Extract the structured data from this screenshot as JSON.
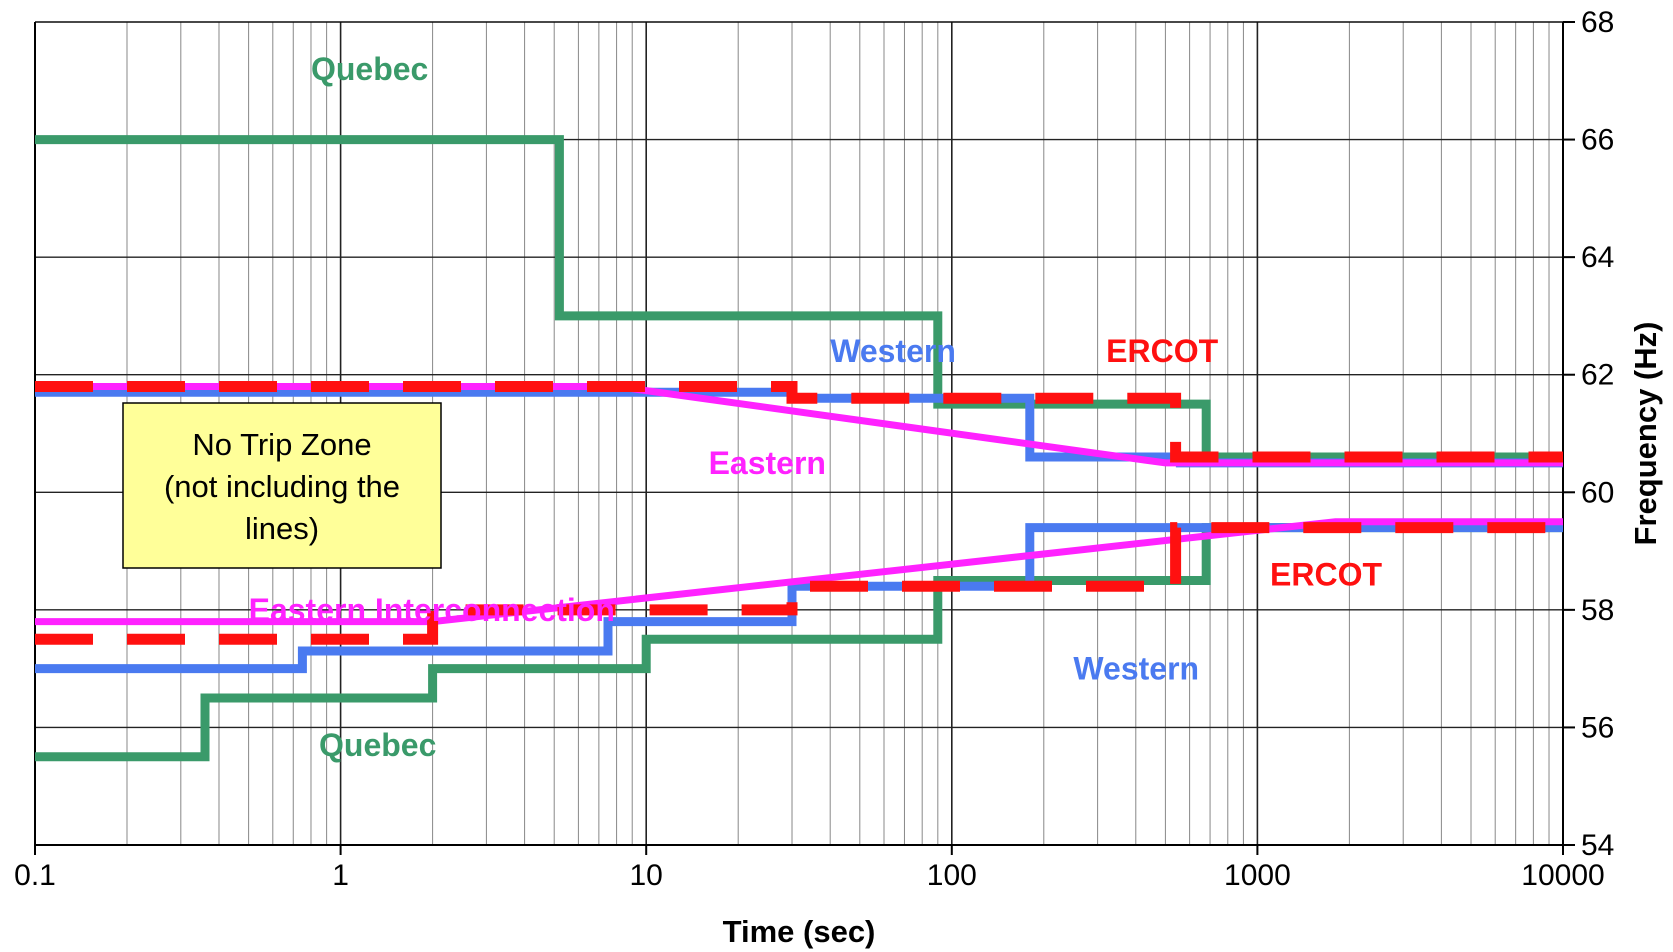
{
  "chart_data": {
    "type": "line",
    "title": "",
    "xlabel": "Time (sec)",
    "ylabel": "Frequency (Hz)",
    "xscale": "log",
    "xlim": [
      0.1,
      10000
    ],
    "ylim": [
      54,
      68
    ],
    "x_ticks": [
      "0.1",
      "1",
      "10",
      "100",
      "1000",
      "10000"
    ],
    "y_ticks": [
      "54",
      "56",
      "58",
      "60",
      "62",
      "64",
      "66",
      "68"
    ],
    "grid": true,
    "legend": "none",
    "colors": {
      "quebec": "#3a9a6a",
      "western": "#4a7af0",
      "eastern": "#ff22ff",
      "ercot": "#ff1010"
    },
    "series": [
      {
        "key": "quebec_high",
        "group": "quebec",
        "style": "solid",
        "points": [
          [
            0.1,
            66
          ],
          [
            5.2,
            66
          ],
          [
            5.2,
            63
          ],
          [
            90,
            63
          ],
          [
            90,
            61.5
          ],
          [
            680,
            61.5
          ],
          [
            680,
            60.6
          ],
          [
            10000,
            60.6
          ]
        ]
      },
      {
        "key": "western_high",
        "group": "western",
        "style": "solid",
        "points": [
          [
            0.1,
            61.7
          ],
          [
            30,
            61.7
          ],
          [
            30,
            61.6
          ],
          [
            180,
            61.6
          ],
          [
            180,
            60.6
          ],
          [
            560,
            60.6
          ],
          [
            560,
            60.5
          ],
          [
            10000,
            60.5
          ]
        ]
      },
      {
        "key": "eastern_high",
        "group": "eastern",
        "style": "solid",
        "points": [
          [
            0.1,
            61.8
          ],
          [
            8,
            61.8
          ],
          [
            500,
            60.5
          ],
          [
            10000,
            60.5
          ]
        ]
      },
      {
        "key": "ercot_high",
        "group": "ercot",
        "style": "dashed",
        "points": [
          [
            0.1,
            61.8
          ],
          [
            30,
            61.8
          ],
          [
            30,
            61.6
          ],
          [
            540,
            61.6
          ],
          [
            540,
            60.6
          ],
          [
            10000,
            60.6
          ]
        ]
      },
      {
        "key": "quebec_low",
        "group": "quebec",
        "style": "solid",
        "points": [
          [
            0.1,
            55.5
          ],
          [
            0.36,
            55.5
          ],
          [
            0.36,
            56.5
          ],
          [
            2,
            56.5
          ],
          [
            2,
            57
          ],
          [
            10,
            57
          ],
          [
            10,
            57.5
          ],
          [
            90,
            57.5
          ],
          [
            90,
            58.5
          ],
          [
            680,
            58.5
          ],
          [
            680,
            59.4
          ],
          [
            10000,
            59.4
          ]
        ]
      },
      {
        "key": "western_low",
        "group": "western",
        "style": "solid",
        "points": [
          [
            0.1,
            57
          ],
          [
            0.75,
            57
          ],
          [
            0.75,
            57.3
          ],
          [
            7.5,
            57.3
          ],
          [
            7.5,
            57.8
          ],
          [
            30,
            57.8
          ],
          [
            30,
            58.4
          ],
          [
            180,
            58.4
          ],
          [
            180,
            59.4
          ],
          [
            10000,
            59.4
          ]
        ]
      },
      {
        "key": "eastern_low",
        "group": "eastern",
        "style": "solid",
        "points": [
          [
            0.1,
            57.8
          ],
          [
            2,
            57.8
          ],
          [
            1800,
            59.5
          ],
          [
            10000,
            59.5
          ]
        ]
      },
      {
        "key": "ercot_low",
        "group": "ercot",
        "style": "dashed",
        "points": [
          [
            0.1,
            57.5
          ],
          [
            2,
            57.5
          ],
          [
            2,
            58
          ],
          [
            30,
            58
          ],
          [
            30,
            58.4
          ],
          [
            540,
            58.4
          ],
          [
            540,
            59.4
          ],
          [
            10000,
            59.4
          ]
        ]
      }
    ],
    "annotations": [
      {
        "key": "quebec_top",
        "text": "Quebec",
        "group": "quebec",
        "x": 0.8,
        "y": 67.2
      },
      {
        "key": "western_top",
        "text": "Western",
        "group": "western",
        "x": 40,
        "y": 62.4
      },
      {
        "key": "ercot_top",
        "text": "ERCOT",
        "group": "ercot",
        "x": 320,
        "y": 62.4
      },
      {
        "key": "eastern_mid",
        "text": "Eastern",
        "group": "eastern",
        "x": 16,
        "y": 60.5
      },
      {
        "key": "eastern_interconnection",
        "text": "Eastern Interconnection",
        "group": "eastern",
        "x": 0.5,
        "y": 58.0
      },
      {
        "key": "ercot_bottom",
        "text": "ERCOT",
        "group": "ercot",
        "x": 1100,
        "y": 58.6
      },
      {
        "key": "western_bottom",
        "text": "Western",
        "group": "western",
        "x": 250,
        "y": 57.0
      },
      {
        "key": "quebec_bottom",
        "text": "Quebec",
        "group": "quebec",
        "x": 0.85,
        "y": 55.7
      }
    ],
    "no_trip_zone": {
      "lines": [
        "No Trip Zone",
        "(not including the",
        "lines)"
      ],
      "fill": "#ffff99"
    }
  }
}
